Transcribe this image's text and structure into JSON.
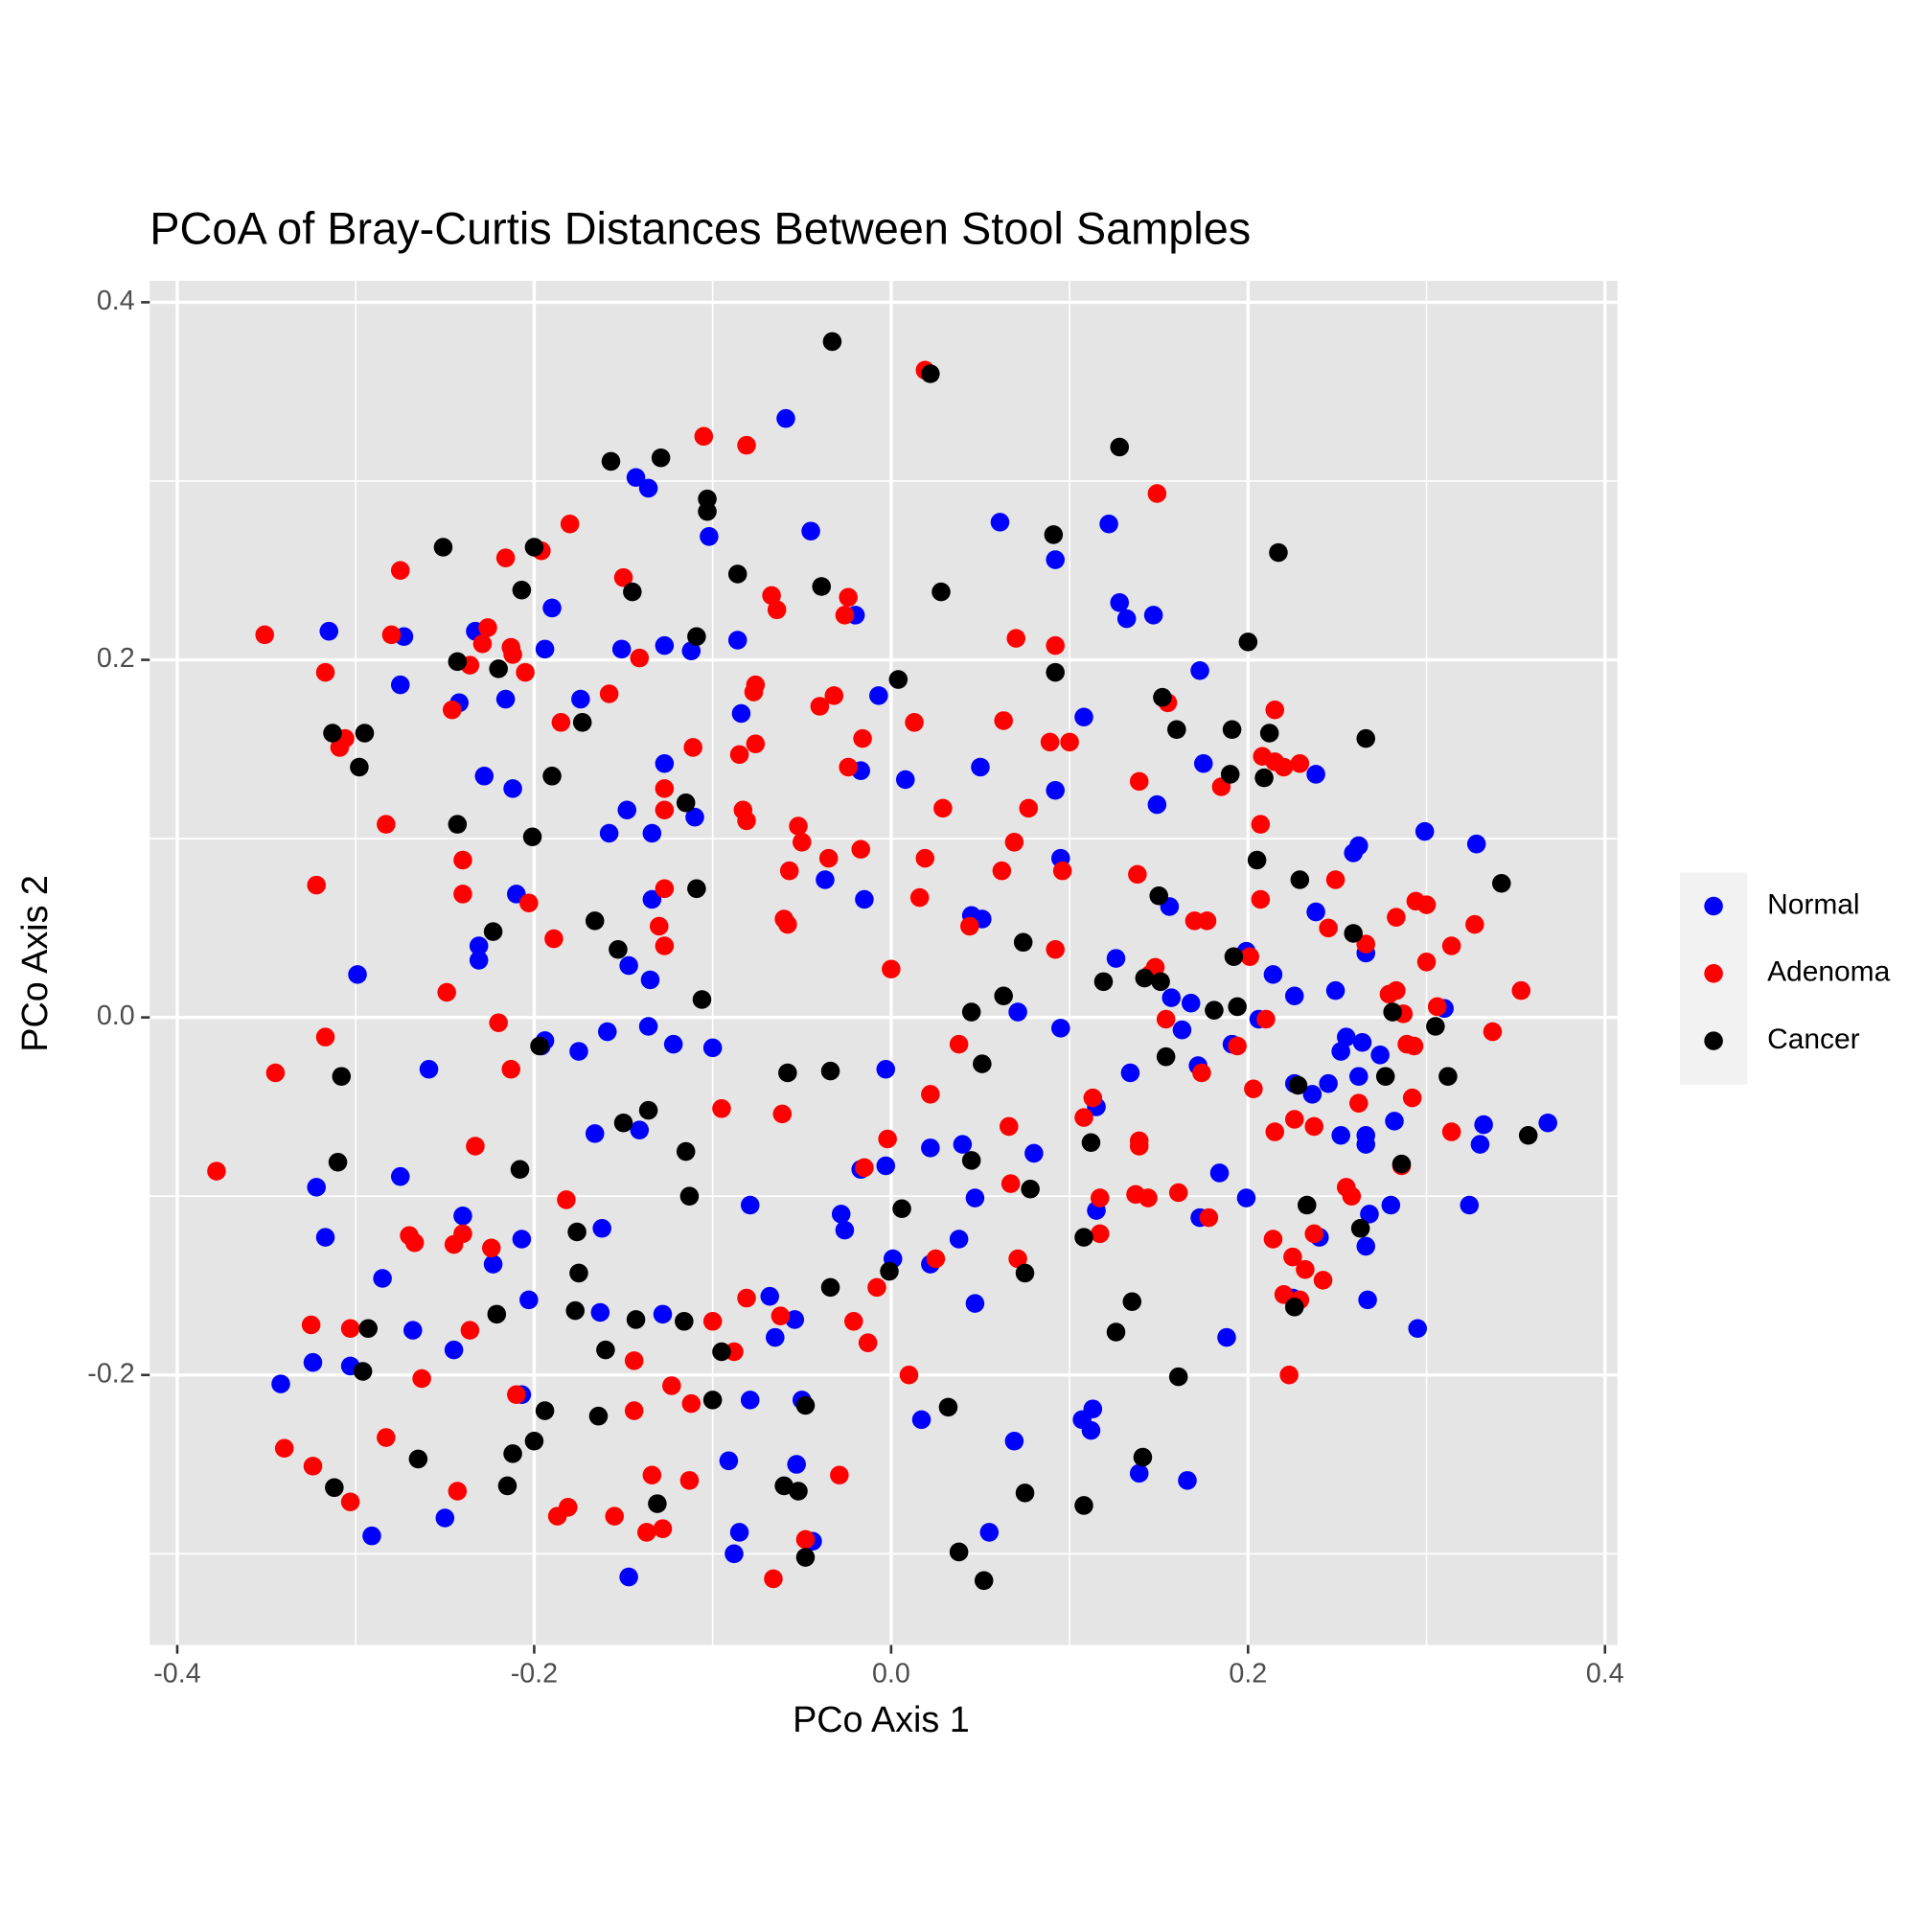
{
  "chart_data": {
    "type": "scatter",
    "title": "PCoA of Bray-Curtis Distances Between Stool Samples",
    "x_label": "PCo Axis 1",
    "y_label": "PCo Axis 2",
    "xlim": [
      -0.4154,
      0.407
    ],
    "ylim": [
      -0.351,
      0.412
    ],
    "xticks": [
      -0.4,
      -0.2,
      {
        "value": 0,
        "label": "0.0"
      },
      0.2,
      0.4
    ],
    "yticks": [
      -0.2,
      {
        "value": 0,
        "label": "0.0"
      },
      0.2,
      0.4
    ],
    "grid": true,
    "legend": "right",
    "series": [
      {
        "name": "Normal",
        "color": "#0000ff",
        "x": [
          -0.315,
          -0.273,
          -0.275,
          -0.242,
          -0.233,
          -0.216,
          -0.228,
          -0.212,
          -0.19,
          -0.194,
          -0.174,
          -0.151,
          -0.127,
          -0.112,
          -0.143,
          -0.136,
          -0.102,
          -0.059,
          -0.045,
          -0.086,
          -0.084,
          -0.127,
          -0.148,
          -0.158,
          -0.134,
          -0.11,
          -0.134,
          -0.037,
          -0.02,
          -0.017,
          -0.007,
          0.008,
          -0.015,
          0.05,
          0.061,
          0.092,
          0.122,
          0.128,
          0.132,
          0.147,
          0.108,
          0.092,
          0.095,
          0.173,
          0.175,
          0.149,
          0.156,
          0.126,
          0.045,
          0.051,
          0.071,
          0.095,
          0.157,
          0.168,
          0.163,
          0.172,
          0.134,
          0.115,
          0.115,
          0.173,
          0.184,
          0.199,
          0.188,
          0.113,
          0.112,
          0.107,
          0.139,
          0.166,
          0.069,
          0.055,
          0.047,
          0.047,
          0.04,
          0.038,
          0.08,
          0.022,
          0.022,
          0.017,
          0.001,
          -0.003,
          -0.003,
          -0.017,
          -0.028,
          -0.026,
          -0.068,
          -0.065,
          -0.054,
          -0.05,
          -0.053,
          -0.044,
          -0.085,
          -0.088,
          -0.091,
          -0.079,
          -0.079,
          -0.1,
          -0.122,
          -0.136,
          -0.159,
          -0.175,
          -0.166,
          -0.162,
          -0.141,
          -0.128,
          -0.163,
          -0.147,
          -0.147,
          -0.135,
          -0.194,
          -0.196,
          -0.207,
          -0.203,
          -0.207,
          -0.223,
          -0.24,
          -0.245,
          -0.25,
          -0.291,
          -0.303,
          -0.324,
          -0.342,
          -0.317,
          -0.322,
          -0.285,
          -0.275,
          -0.268,
          -0.259,
          -0.299,
          -0.231,
          -0.231,
          -0.21,
          0.199,
          0.214,
          0.226,
          0.206,
          0.191,
          0.238,
          0.238,
          0.259,
          0.262,
          0.299,
          0.328,
          0.266,
          0.249,
          0.255,
          0.252,
          0.264,
          0.274,
          0.262,
          0.245,
          0.236,
          0.226,
          0.252,
          0.266,
          0.266,
          0.282,
          0.31,
          0.332,
          0.33,
          0.368,
          0.268,
          0.28,
          0.266,
          0.267,
          0.295,
          0.324,
          0.24,
          0.225
        ],
        "values": [
          0.216,
          0.213,
          0.186,
          0.176,
          0.216,
          0.178,
          0.135,
          0.128,
          0.229,
          0.206,
          0.178,
          0.206,
          0.208,
          0.205,
          0.302,
          0.296,
          0.269,
          0.335,
          0.272,
          0.211,
          0.17,
          0.142,
          0.116,
          0.103,
          0.103,
          0.112,
          0.066,
          0.077,
          0.225,
          0.138,
          0.18,
          0.133,
          0.066,
          0.14,
          0.277,
          0.256,
          0.276,
          0.232,
          0.223,
          0.225,
          0.168,
          0.127,
          0.089,
          0.194,
          0.142,
          0.119,
          0.062,
          0.033,
          0.057,
          0.055,
          0.003,
          -0.006,
          0.011,
          0.008,
          -0.007,
          -0.027,
          -0.031,
          -0.05,
          -0.108,
          -0.112,
          -0.087,
          -0.101,
          -0.179,
          -0.219,
          -0.231,
          -0.225,
          -0.255,
          -0.259,
          -0.237,
          -0.288,
          -0.16,
          -0.101,
          -0.071,
          -0.124,
          -0.076,
          -0.073,
          -0.138,
          -0.225,
          -0.135,
          -0.083,
          -0.029,
          -0.085,
          -0.11,
          -0.119,
          -0.156,
          -0.179,
          -0.169,
          -0.214,
          -0.25,
          -0.293,
          -0.288,
          -0.3,
          -0.248,
          -0.214,
          -0.105,
          -0.017,
          -0.015,
          -0.005,
          -0.008,
          -0.019,
          -0.065,
          -0.118,
          -0.063,
          -0.166,
          -0.165,
          -0.313,
          0.029,
          0.021,
          -0.013,
          -0.016,
          -0.211,
          -0.158,
          -0.124,
          -0.138,
          -0.111,
          -0.186,
          -0.28,
          -0.29,
          -0.195,
          -0.193,
          -0.205,
          -0.123,
          -0.095,
          -0.146,
          -0.089,
          -0.175,
          -0.029,
          0.024,
          0.04,
          0.032,
          0.069,
          0.037,
          0.024,
          0.012,
          -0.001,
          -0.015,
          0.136,
          0.059,
          0.092,
          0.096,
          0.104,
          0.097,
          0.036,
          0.015,
          -0.011,
          -0.019,
          -0.014,
          -0.021,
          -0.033,
          -0.037,
          -0.043,
          -0.037,
          -0.066,
          -0.066,
          -0.071,
          -0.058,
          0.005,
          -0.06,
          -0.071,
          -0.059,
          -0.11,
          -0.105,
          -0.128,
          -0.158,
          -0.174,
          -0.105,
          -0.123,
          -0.157
        ]
      },
      {
        "name": "Adenoma",
        "color": "#ff0000",
        "x": [
          -0.351,
          -0.317,
          -0.309,
          -0.306,
          -0.275,
          -0.28,
          -0.283,
          -0.322,
          -0.317,
          -0.345,
          -0.378,
          -0.325,
          -0.303,
          -0.34,
          -0.324,
          -0.303,
          -0.283,
          -0.27,
          -0.267,
          -0.263,
          -0.249,
          -0.246,
          -0.236,
          -0.229,
          -0.226,
          -0.24,
          -0.24,
          -0.233,
          -0.216,
          -0.196,
          -0.18,
          -0.213,
          -0.212,
          -0.205,
          -0.203,
          -0.189,
          -0.185,
          -0.22,
          -0.213,
          -0.245,
          -0.24,
          -0.224,
          -0.236,
          -0.21,
          -0.243,
          -0.187,
          -0.181,
          -0.182,
          -0.158,
          -0.15,
          -0.141,
          -0.155,
          -0.144,
          -0.144,
          -0.137,
          -0.128,
          -0.134,
          -0.123,
          -0.112,
          -0.113,
          -0.127,
          -0.127,
          -0.127,
          -0.13,
          -0.127,
          -0.111,
          -0.105,
          -0.081,
          -0.076,
          -0.077,
          -0.076,
          -0.085,
          -0.083,
          -0.081,
          -0.067,
          -0.064,
          -0.052,
          -0.05,
          -0.057,
          -0.06,
          -0.058,
          -0.04,
          -0.032,
          -0.035,
          -0.024,
          -0.026,
          -0.024,
          -0.016,
          -0.017,
          0.013,
          0.019,
          0.016,
          0.029,
          0.019,
          0,
          0.044,
          0.038,
          0.022,
          -0.002,
          -0.015,
          -0.008,
          -0.021,
          -0.013,
          -0.029,
          -0.048,
          -0.066,
          -0.062,
          -0.081,
          -0.088,
          -0.1,
          -0.095,
          -0.061,
          0.01,
          0.025,
          0.062,
          0.069,
          0.063,
          0.07,
          0.077,
          0.089,
          0.1,
          0.092,
          0.092,
          0.096,
          0.149,
          0.139,
          0.138,
          0.148,
          0.145,
          0.154,
          0.155,
          0.17,
          0.177,
          0.185,
          0.174,
          0.178,
          0.161,
          0.139,
          0.139,
          0.137,
          0.144,
          0.117,
          0.117,
          0.108,
          0.113,
          0.066,
          0.067,
          0.071,
          0.201,
          0.21,
          0.207,
          0.207,
          0.203,
          0.194,
          0.208,
          0.215,
          0.22,
          0.229,
          0.215,
          0.215,
          0.226,
          0.237,
          0.214,
          0.225,
          0.232,
          0.242,
          0.22,
          0.229,
          0.223,
          0.237,
          0.255,
          0.258,
          0.262,
          0.245,
          0.249,
          0.266,
          0.283,
          0.279,
          0.283,
          0.287,
          0.289,
          0.293,
          0.292,
          0.286,
          0.294,
          0.3,
          0.3,
          0.306,
          0.314,
          0.327,
          0.314,
          0.337,
          0.353
        ],
        "values": [
          0.214,
          0.193,
          0.151,
          0.156,
          0.25,
          0.214,
          0.108,
          0.074,
          -0.011,
          -0.031,
          -0.086,
          -0.172,
          -0.174,
          -0.241,
          -0.251,
          -0.271,
          -0.235,
          -0.122,
          -0.126,
          -0.202,
          0.014,
          0.172,
          0.197,
          0.209,
          0.218,
          0.088,
          0.069,
          -0.072,
          0.257,
          0.261,
          0.276,
          0.207,
          0.203,
          0.193,
          0.064,
          0.044,
          0.165,
          -0.003,
          -0.029,
          -0.127,
          -0.121,
          -0.129,
          -0.175,
          -0.211,
          -0.265,
          -0.279,
          -0.274,
          -0.102,
          0.181,
          0.246,
          0.201,
          -0.279,
          -0.192,
          -0.22,
          -0.288,
          -0.286,
          -0.256,
          -0.206,
          -0.216,
          -0.259,
          0.128,
          0.116,
          0.072,
          0.051,
          0.04,
          0.151,
          0.325,
          0.32,
          0.186,
          0.182,
          0.153,
          0.147,
          0.116,
          0.11,
          0.236,
          0.228,
          0.107,
          0.098,
          0.082,
          0.055,
          0.052,
          0.174,
          0.18,
          0.089,
          0.235,
          0.225,
          0.14,
          0.156,
          0.094,
          0.165,
          0.089,
          0.067,
          0.117,
          0.362,
          0.027,
          0.051,
          -0.015,
          -0.043,
          -0.068,
          -0.084,
          -0.151,
          -0.17,
          -0.182,
          -0.256,
          -0.292,
          -0.314,
          -0.167,
          -0.157,
          -0.187,
          -0.17,
          -0.051,
          -0.054,
          -0.2,
          -0.135,
          0.082,
          0.098,
          0.166,
          0.212,
          0.117,
          0.154,
          0.154,
          0.208,
          0.038,
          0.082,
          0.293,
          0.132,
          0.08,
          0.028,
          0.024,
          -0.001,
          0.176,
          0.054,
          0.054,
          0.129,
          -0.031,
          -0.112,
          -0.098,
          -0.069,
          -0.072,
          -0.099,
          -0.101,
          -0.101,
          -0.121,
          -0.056,
          -0.045,
          -0.061,
          -0.093,
          -0.135,
          0.034,
          -0.001,
          0.108,
          0.066,
          -0.04,
          -0.016,
          0.146,
          0.143,
          0.14,
          0.142,
          0.172,
          -0.064,
          -0.057,
          -0.061,
          -0.124,
          -0.134,
          -0.141,
          -0.147,
          -0.155,
          -0.158,
          -0.2,
          -0.121,
          -0.095,
          -0.1,
          -0.048,
          0.05,
          0.077,
          0.041,
          0.056,
          0.013,
          0.015,
          0.002,
          -0.015,
          -0.016,
          -0.045,
          -0.083,
          0.065,
          0.063,
          0.031,
          0.006,
          0.04,
          0.052,
          -0.064,
          -0.008,
          0.015
        ]
      },
      {
        "name": "Cancer",
        "color": "#000000",
        "x": [
          -0.033,
          0.022,
          0.128,
          -0.157,
          -0.129,
          -0.103,
          -0.103,
          -0.251,
          -0.2,
          -0.086,
          -0.039,
          -0.145,
          -0.207,
          0.028,
          0.217,
          0.091,
          -0.243,
          -0.22,
          -0.109,
          0.004,
          0.092,
          0.152,
          0.16,
          0.2,
          0.266,
          0.191,
          0.212,
          -0.313,
          -0.295,
          -0.298,
          -0.173,
          -0.19,
          -0.115,
          -0.243,
          -0.201,
          -0.109,
          0.19,
          0.209,
          0.205,
          0.229,
          0.342,
          0.15,
          0.074,
          -0.223,
          -0.166,
          -0.153,
          -0.106,
          0.063,
          0.045,
          0.051,
          0.119,
          0.142,
          0.151,
          0.154,
          0.181,
          0.194,
          0.192,
          0.281,
          0.305,
          0.312,
          0.277,
          0.259,
          0.357,
          0.263,
          0.286,
          0.228,
          0.233,
          0.226,
          -0.308,
          -0.197,
          -0.058,
          -0.034,
          -0.31,
          -0.208,
          -0.15,
          -0.136,
          -0.115,
          -0.113,
          0.045,
          0.006,
          0.078,
          0.112,
          0.108,
          -0.176,
          -0.175,
          -0.177,
          -0.221,
          -0.293,
          -0.296,
          -0.16,
          -0.143,
          -0.116,
          -0.095,
          -0.034,
          -0.001,
          0.075,
          0.135,
          0.126,
          0.161,
          -0.194,
          -0.2,
          -0.164,
          -0.1,
          -0.048,
          0.032,
          -0.265,
          -0.212,
          -0.215,
          -0.312,
          -0.131,
          -0.06,
          -0.052,
          -0.048,
          0.038,
          0.052,
          0.075,
          0.108,
          0.141
        ],
        "values": [
          0.378,
          0.36,
          0.319,
          0.311,
          0.313,
          0.29,
          0.283,
          0.263,
          0.263,
          0.248,
          0.241,
          0.238,
          0.239,
          0.238,
          0.26,
          0.27,
          0.199,
          0.195,
          0.213,
          0.189,
          0.193,
          0.179,
          0.161,
          0.21,
          0.156,
          0.161,
          0.159,
          0.159,
          0.159,
          0.14,
          0.165,
          0.135,
          0.12,
          0.108,
          0.101,
          0.072,
          0.136,
          0.134,
          0.088,
          0.077,
          0.075,
          0.068,
          0.042,
          0.048,
          0.054,
          0.038,
          0.01,
          0.012,
          0.003,
          -0.026,
          0.02,
          0.022,
          0.02,
          -0.022,
          0.004,
          0.006,
          0.034,
          0.003,
          -0.005,
          -0.033,
          -0.033,
          0.047,
          -0.066,
          -0.118,
          -0.082,
          -0.038,
          -0.105,
          -0.162,
          -0.033,
          -0.016,
          -0.031,
          -0.03,
          -0.081,
          -0.085,
          -0.059,
          -0.052,
          -0.075,
          -0.1,
          -0.08,
          -0.107,
          -0.096,
          -0.07,
          -0.123,
          -0.12,
          -0.143,
          -0.164,
          -0.166,
          -0.174,
          -0.198,
          -0.186,
          -0.169,
          -0.17,
          -0.187,
          -0.151,
          -0.142,
          -0.143,
          -0.159,
          -0.176,
          -0.201,
          -0.22,
          -0.237,
          -0.223,
          -0.214,
          -0.217,
          -0.218,
          -0.247,
          -0.244,
          -0.262,
          -0.263,
          -0.272,
          -0.262,
          -0.265,
          -0.302,
          -0.299,
          -0.315,
          -0.266,
          -0.273,
          -0.246
        ]
      }
    ]
  }
}
